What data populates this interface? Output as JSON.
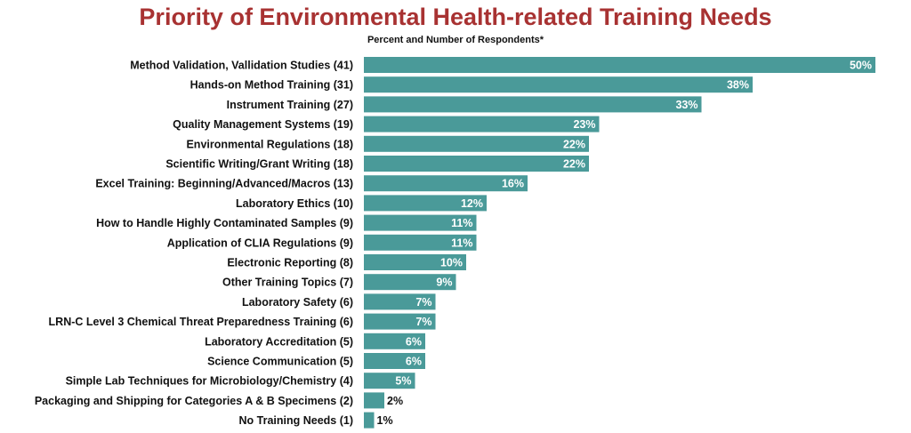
{
  "chart_data": {
    "type": "bar",
    "orientation": "horizontal",
    "title": "Priority of Environmental Health-related Training Needs",
    "subtitle": "Percent and Number of Respondents*",
    "bar_color": "#4a9a99",
    "title_color": "#a83232",
    "xlim": [
      0,
      50
    ],
    "grid": false,
    "categories": [
      "Method Validation, Vallidation Studies (41)",
      "Hands-on Method Training (31)",
      "Instrument Training (27)",
      "Quality Management Systems (19)",
      "Environmental Regulations (18)",
      "Scientific Writing/Grant Writing (18)",
      "Excel Training: Beginning/Advanced/Macros (13)",
      "Laboratory Ethics (10)",
      "How to Handle Highly Contaminated Samples (9)",
      "Application of CLIA Regulations (9)",
      "Electronic Reporting (8)",
      "Other Training Topics (7)",
      "Laboratory Safety (6)",
      "LRN-C Level 3 Chemical Threat Preparedness Training (6)",
      "Laboratory Accreditation (5)",
      "Science Communication (5)",
      "Simple Lab Techniques for Microbiology/Chemistry (4)",
      "Packaging and Shipping for Categories A & B Specimens (2)",
      "No Training Needs (1)"
    ],
    "values": [
      50,
      38,
      33,
      23,
      22,
      22,
      16,
      12,
      11,
      11,
      10,
      9,
      7,
      7,
      6,
      6,
      5,
      2,
      1
    ],
    "value_labels": [
      "50%",
      "38%",
      "33%",
      "23%",
      "22%",
      "22%",
      "16%",
      "12%",
      "11%",
      "11%",
      "10%",
      "9%",
      "7%",
      "7%",
      "6%",
      "6%",
      "5%",
      "2%",
      "1%"
    ]
  }
}
